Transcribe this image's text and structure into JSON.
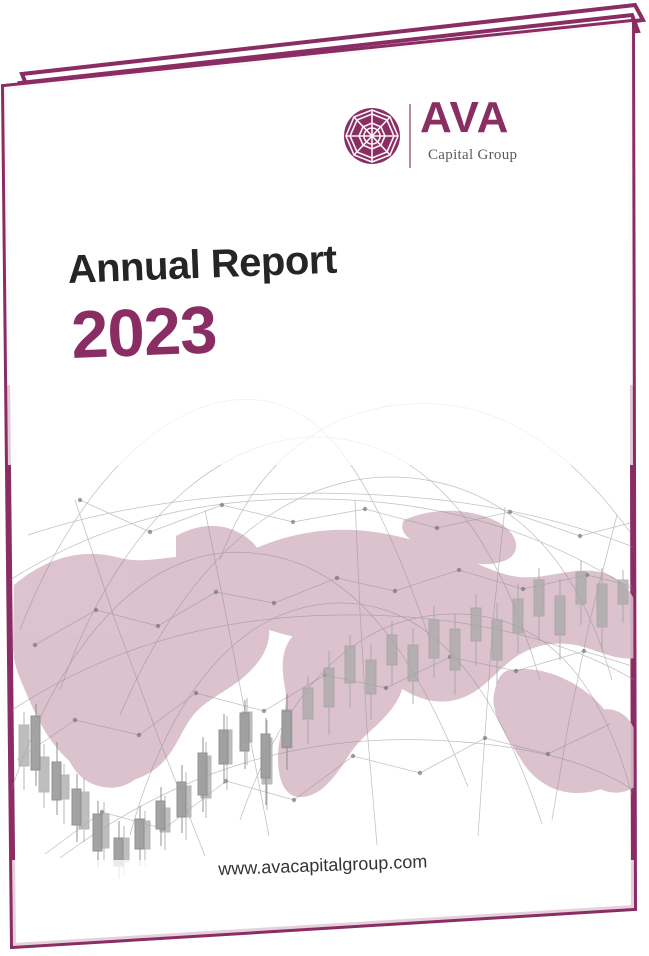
{
  "brand": {
    "name": "AVA",
    "subtitle": "Capital Group"
  },
  "report": {
    "title": "Annual Report",
    "year": "2023"
  },
  "footer": {
    "website": "www.avacapitalgroup.com"
  },
  "colors": {
    "accent": "#8a2d63",
    "title_text": "#252525",
    "map": "#d7b9c6",
    "chart_gray": "#a7a7a7"
  },
  "icons": {
    "brand_mark": "geometric-sphere-logo"
  }
}
